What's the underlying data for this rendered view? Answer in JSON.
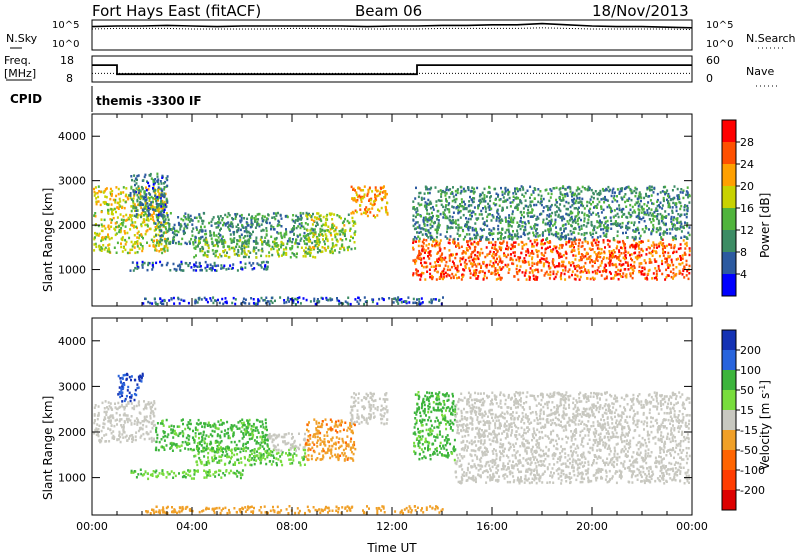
{
  "header": {
    "station": "Fort Hays East (fitACF)",
    "beam": "Beam 06",
    "date": "18/Nov/2013"
  },
  "noise_panel": {
    "left_label": "N.Sky",
    "left_ticks": [
      "10^5",
      "10^0"
    ],
    "right_label": "N.Search",
    "right_ticks": [
      "10^5",
      "10^0"
    ]
  },
  "freq_panel": {
    "left_label_line1": "Freq.",
    "left_label_line2": "[MHz]",
    "left_ticks": [
      "18",
      "8"
    ],
    "right_label": "Nave",
    "right_ticks": [
      "60",
      "0"
    ]
  },
  "cpid_panel": {
    "label": "CPID",
    "program": "themis -3300 IF"
  },
  "colors": {
    "axis": "#000000",
    "background": "#ffffff",
    "power_scale": [
      "#0000ff",
      "#2c5aa0",
      "#3c8c64",
      "#50b43c",
      "#c8d200",
      "#ffa000",
      "#ff5000",
      "#ff0000"
    ],
    "velocity_scale": [
      "#1432b4",
      "#2864dc",
      "#3cb43c",
      "#78dc3c",
      "#c8c8c0",
      "#f0a028",
      "#ff6400",
      "#ff3c00",
      "#dc0000"
    ]
  },
  "chart_data": [
    {
      "type": "line",
      "name": "noise",
      "x_range": [
        0,
        24
      ],
      "series": [
        {
          "name": "N.Sky",
          "style": "solid",
          "values_log10": [
            3.9,
            4.0,
            4.0,
            4.1,
            4.0,
            3.9,
            4.0,
            4.0,
            4.0,
            4.0,
            4.0,
            3.9,
            4.0,
            4.0,
            4.1,
            4.1,
            4.2,
            4.2,
            4.4,
            4.2,
            4.0,
            3.9,
            3.9,
            3.8,
            3.7
          ]
        },
        {
          "name": "N.Search",
          "style": "dotted",
          "values_log10": [
            3.5,
            3.6,
            3.6,
            3.6,
            3.5,
            3.5,
            3.5,
            3.5,
            3.6,
            3.6,
            3.5,
            3.5,
            3.5,
            3.5,
            3.6,
            3.6,
            3.6,
            3.6,
            3.7,
            3.6,
            3.5,
            3.5,
            3.5,
            3.5,
            3.4
          ]
        }
      ],
      "ylim_log10": [
        0,
        5
      ]
    },
    {
      "type": "line",
      "name": "frequency",
      "series": [
        {
          "name": "Freq.",
          "style": "solid",
          "x": [
            0,
            1.0,
            1.0,
            13.0,
            13.0,
            24
          ],
          "y": [
            14.5,
            14.5,
            11.0,
            11.0,
            14.5,
            14.5
          ]
        },
        {
          "name": "Nave",
          "style": "dotted",
          "x": [
            0,
            24
          ],
          "y": [
            20,
            20
          ]
        }
      ],
      "ylim": [
        8,
        18
      ],
      "y2lim": [
        0,
        60
      ]
    },
    {
      "type": "heatmap",
      "name": "power",
      "title": "",
      "xlabel": "",
      "ylabel": "Slant Range [km]",
      "x_ticks": [
        "00:00",
        "04:00",
        "08:00",
        "12:00",
        "16:00",
        "20:00",
        "00:00"
      ],
      "y_ticks": [
        1000,
        2000,
        3000,
        4000
      ],
      "ylim": [
        180,
        4500
      ],
      "xlim": [
        0,
        24
      ],
      "colorbar_label": "Power [dB]",
      "colorbar_ticks": [
        4,
        8,
        12,
        16,
        20,
        24,
        28
      ],
      "colorbar_range": [
        0,
        32
      ],
      "echo_regions": [
        {
          "t0": 0.0,
          "t1": 3.0,
          "r0": 1400,
          "r1": 2900,
          "power": 18
        },
        {
          "t0": 1.5,
          "t1": 3.0,
          "r0": 2200,
          "r1": 3200,
          "power": 8
        },
        {
          "t0": 2.5,
          "t1": 9.0,
          "r0": 1600,
          "r1": 2300,
          "power": 10
        },
        {
          "t0": 4.0,
          "t1": 9.0,
          "r0": 1300,
          "r1": 1700,
          "power": 14
        },
        {
          "t0": 1.5,
          "t1": 7.0,
          "r0": 1000,
          "r1": 1200,
          "power": 6
        },
        {
          "t0": 8.5,
          "t1": 10.5,
          "r0": 1400,
          "r1": 2300,
          "power": 16
        },
        {
          "t0": 10.3,
          "t1": 11.8,
          "r0": 2200,
          "r1": 2900,
          "power": 22
        },
        {
          "t0": 12.8,
          "t1": 24.0,
          "r0": 800,
          "r1": 1700,
          "power": 26
        },
        {
          "t0": 12.8,
          "t1": 24.0,
          "r0": 1700,
          "r1": 2900,
          "power": 10
        },
        {
          "t0": 2.0,
          "t1": 14.0,
          "r0": 180,
          "r1": 400,
          "power": 6
        }
      ]
    },
    {
      "type": "heatmap",
      "name": "velocity",
      "title": "",
      "xlabel": "Time UT",
      "ylabel": "Slant Range [km]",
      "x_ticks": [
        "00:00",
        "04:00",
        "08:00",
        "12:00",
        "16:00",
        "20:00",
        "00:00"
      ],
      "y_ticks": [
        1000,
        2000,
        3000,
        4000
      ],
      "ylim": [
        180,
        4500
      ],
      "xlim": [
        0,
        24
      ],
      "colorbar_label": "Velocity [m s^-1]",
      "colorbar_ticks": [
        200,
        100,
        50,
        15,
        -15,
        -50,
        -100,
        -200
      ],
      "echo_regions": [
        {
          "t0": 0.0,
          "t1": 2.5,
          "r0": 1800,
          "r1": 2700,
          "velocity": 0
        },
        {
          "t0": 1.0,
          "t1": 2.0,
          "r0": 2700,
          "r1": 3300,
          "velocity": 150
        },
        {
          "t0": 2.5,
          "t1": 7.0,
          "r0": 1600,
          "r1": 2300,
          "velocity": 40
        },
        {
          "t0": 4.0,
          "t1": 8.5,
          "r0": 1300,
          "r1": 1700,
          "velocity": 30
        },
        {
          "t0": 1.5,
          "t1": 6.0,
          "r0": 1000,
          "r1": 1200,
          "velocity": 30
        },
        {
          "t0": 7.0,
          "t1": 8.5,
          "r0": 1600,
          "r1": 2000,
          "velocity": 0
        },
        {
          "t0": 8.5,
          "t1": 10.5,
          "r0": 1400,
          "r1": 2300,
          "velocity": -40
        },
        {
          "t0": 10.3,
          "t1": 11.8,
          "r0": 2200,
          "r1": 2900,
          "velocity": 0
        },
        {
          "t0": 12.8,
          "t1": 14.5,
          "r0": 1400,
          "r1": 2900,
          "velocity": 40
        },
        {
          "t0": 14.5,
          "t1": 24.0,
          "r0": 900,
          "r1": 2900,
          "velocity": 0
        },
        {
          "t0": 2.0,
          "t1": 14.0,
          "r0": 180,
          "r1": 400,
          "velocity": -30
        }
      ]
    }
  ]
}
